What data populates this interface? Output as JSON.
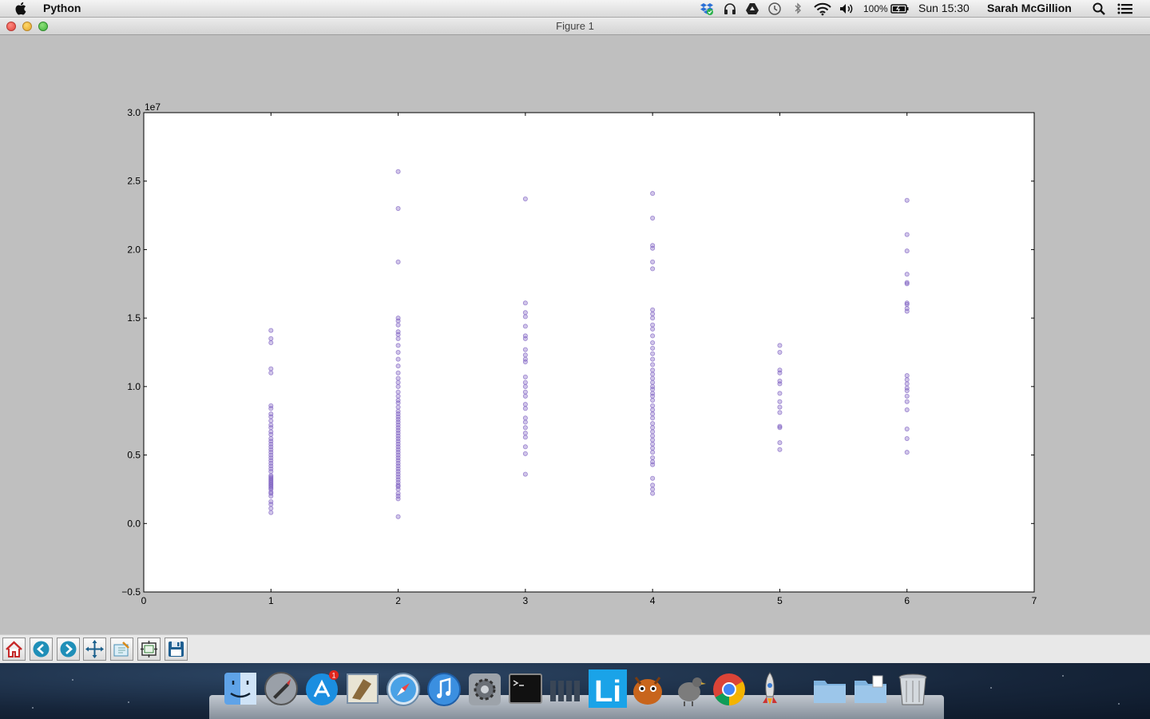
{
  "menubar": {
    "app_name": "Python",
    "battery": "100%",
    "clock": "Sun 15:30",
    "user": "Sarah McGillion",
    "status_icons": [
      "dropbox-icon",
      "headphones-icon",
      "google-drive-icon",
      "time-machine-icon",
      "bluetooth-icon",
      "wifi-icon",
      "volume-icon",
      "battery-icon",
      "spotlight-icon",
      "notification-center-icon"
    ]
  },
  "window": {
    "title": "Figure 1"
  },
  "toolbar": {
    "buttons": [
      "home-icon",
      "back-arrow-icon",
      "forward-arrow-icon",
      "pan-icon",
      "zoom-icon",
      "subplots-icon",
      "save-icon"
    ]
  },
  "dock": {
    "apps": [
      "finder-icon",
      "launchpad-icon",
      "app-store-icon",
      "mail-icon",
      "safari-icon",
      "itunes-icon",
      "system-preferences-icon",
      "terminal-icon",
      "mission-control-icon",
      "li-app-icon",
      "gimp-icon",
      "python-launcher-icon",
      "chrome-icon",
      "rocket-icon",
      "documents-folder-icon",
      "downloads-folder-icon",
      "trash-icon"
    ],
    "badge": "1"
  },
  "chart_data": {
    "type": "scatter",
    "offset_label": "1e7",
    "xlim": [
      0,
      7
    ],
    "ylim": [
      -0.5,
      3.0
    ],
    "xticks": [
      "0",
      "1",
      "2",
      "3",
      "4",
      "5",
      "6",
      "7"
    ],
    "yticks": [
      "−0.5",
      "0.0",
      "0.5",
      "1.0",
      "1.5",
      "2.0",
      "2.5",
      "3.0"
    ],
    "ytick_values": [
      -0.5,
      0.0,
      0.5,
      1.0,
      1.5,
      2.0,
      2.5,
      3.0
    ],
    "xtick_values": [
      0,
      1,
      2,
      3,
      4,
      5,
      6,
      7
    ],
    "marker_color": "#7a5cc0",
    "grid": false,
    "series": [
      {
        "x": 1,
        "y": [
          0.08,
          0.11,
          0.14,
          0.16,
          0.2,
          0.22,
          0.23,
          0.25,
          0.26,
          0.27,
          0.28,
          0.29,
          0.3,
          0.31,
          0.32,
          0.33,
          0.34,
          0.35,
          0.38,
          0.4,
          0.42,
          0.44,
          0.46,
          0.48,
          0.5,
          0.52,
          0.54,
          0.56,
          0.58,
          0.6,
          0.62,
          0.65,
          0.67,
          0.7,
          0.72,
          0.75,
          0.78,
          0.8,
          0.84,
          0.86,
          1.1,
          1.13,
          1.32,
          1.35,
          1.41
        ]
      },
      {
        "x": 2,
        "y": [
          0.05,
          0.18,
          0.2,
          0.22,
          0.25,
          0.27,
          0.28,
          0.3,
          0.32,
          0.34,
          0.36,
          0.38,
          0.4,
          0.42,
          0.44,
          0.46,
          0.48,
          0.5,
          0.52,
          0.54,
          0.56,
          0.58,
          0.6,
          0.62,
          0.64,
          0.66,
          0.68,
          0.7,
          0.72,
          0.74,
          0.76,
          0.78,
          0.8,
          0.82,
          0.85,
          0.88,
          0.9,
          0.93,
          0.96,
          1.0,
          1.03,
          1.06,
          1.1,
          1.15,
          1.2,
          1.25,
          1.3,
          1.35,
          1.38,
          1.4,
          1.45,
          1.48,
          1.5,
          1.91,
          2.3,
          2.57
        ]
      },
      {
        "x": 3,
        "y": [
          0.36,
          0.51,
          0.56,
          0.63,
          0.66,
          0.7,
          0.74,
          0.77,
          0.84,
          0.87,
          0.93,
          0.96,
          1.0,
          1.03,
          1.07,
          1.18,
          1.2,
          1.23,
          1.27,
          1.35,
          1.37,
          1.44,
          1.51,
          1.54,
          1.61,
          2.37
        ]
      },
      {
        "x": 4,
        "y": [
          0.22,
          0.25,
          0.28,
          0.33,
          0.43,
          0.45,
          0.48,
          0.52,
          0.55,
          0.58,
          0.61,
          0.64,
          0.67,
          0.7,
          0.73,
          0.77,
          0.8,
          0.83,
          0.86,
          0.9,
          0.93,
          0.95,
          0.98,
          1.0,
          1.03,
          1.06,
          1.09,
          1.12,
          1.16,
          1.2,
          1.24,
          1.28,
          1.32,
          1.37,
          1.42,
          1.45,
          1.5,
          1.53,
          1.56,
          1.86,
          1.91,
          2.01,
          2.03,
          2.23,
          2.41
        ]
      },
      {
        "x": 5,
        "y": [
          0.54,
          0.59,
          0.7,
          0.71,
          0.81,
          0.85,
          0.89,
          0.95,
          1.02,
          1.04,
          1.1,
          1.12,
          1.25,
          1.3
        ]
      },
      {
        "x": 6,
        "y": [
          0.52,
          0.62,
          0.69,
          0.83,
          0.89,
          0.93,
          0.97,
          0.99,
          1.02,
          1.05,
          1.08,
          1.55,
          1.57,
          1.6,
          1.61,
          1.75,
          1.76,
          1.82,
          1.99,
          2.11,
          2.36
        ]
      }
    ]
  }
}
